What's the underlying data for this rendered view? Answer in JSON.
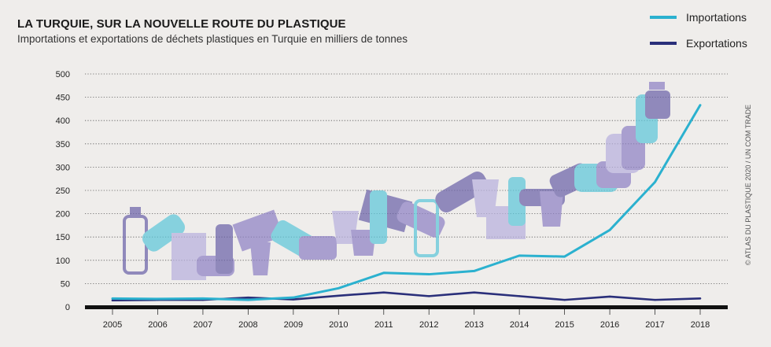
{
  "title": "LA TURQUIE, SUR LA NOUVELLE ROUTE DU PLASTIQUE",
  "subtitle": "Importations et exportations de déchets plastiques en Turquie en milliers de tonnes",
  "credit": "© ATLAS DU PLASTIQUE 2020 / UN COM TRADE",
  "colors": {
    "imports": "#2bb1cf",
    "exports": "#2a2f7a",
    "background": "#efedeb",
    "illustration": "#8f86c6"
  },
  "chart_data": {
    "type": "line",
    "title": "LA TURQUIE, SUR LA NOUVELLE ROUTE DU PLASTIQUE",
    "subtitle": "Importations et exportations de déchets plastiques en Turquie en milliers de tonnes",
    "x": [
      "2005",
      "2006",
      "2007",
      "2008",
      "2009",
      "2010",
      "2011",
      "2012",
      "2013",
      "2014",
      "2015",
      "2016",
      "2017",
      "2018"
    ],
    "y_ticks": [
      "0",
      "50",
      "100",
      "150",
      "200",
      "250",
      "300",
      "350",
      "400",
      "450",
      "500"
    ],
    "ylim": [
      0,
      500
    ],
    "grid": true,
    "legend_position": "top-right",
    "series": [
      {
        "name": "Importations",
        "color": "#2bb1cf",
        "values": [
          18,
          17,
          18,
          15,
          20,
          40,
          73,
          70,
          77,
          110,
          108,
          165,
          268,
          433
        ]
      },
      {
        "name": "Exportations",
        "color": "#2a2f7a",
        "values": [
          14,
          15,
          15,
          20,
          16,
          24,
          31,
          23,
          31,
          23,
          15,
          22,
          15,
          18
        ]
      }
    ]
  }
}
